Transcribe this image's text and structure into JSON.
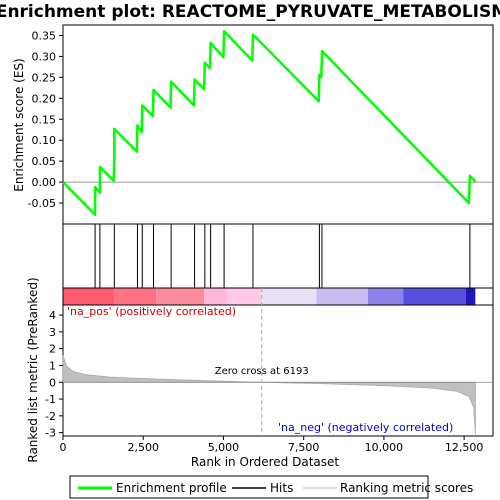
{
  "title": "Enrichment plot: REACTOME_PYRUVATE_METABOLISM",
  "chart_data": {
    "type": "line",
    "title": "Enrichment plot: REACTOME_PYRUVATE_METABOLISM",
    "xlabel": "Rank in Ordered Dataset",
    "x_range": [
      0,
      13400
    ],
    "x_ticks": [
      "0",
      "2,500",
      "5,000",
      "7,500",
      "10,000",
      "12,500"
    ],
    "x_tick_values": [
      0,
      2500,
      5000,
      7500,
      10000,
      12500
    ],
    "enrichment_panel": {
      "ylabel": "Enrichment score (ES)",
      "ylim": [
        -0.1,
        0.375
      ],
      "y_ticks": [
        "-0.05",
        "0.00",
        "0.05",
        "0.10",
        "0.15",
        "0.20",
        "0.25",
        "0.30",
        "0.35"
      ],
      "y_tick_values": [
        -0.05,
        0.0,
        0.05,
        0.1,
        0.15,
        0.2,
        0.25,
        0.3,
        0.35
      ],
      "series_name": "Enrichment profile",
      "color": "#00ff00",
      "points": [
        [
          0,
          0.0
        ],
        [
          1000,
          -0.078
        ],
        [
          1000,
          -0.012
        ],
        [
          1150,
          -0.025
        ],
        [
          1150,
          0.036
        ],
        [
          1580,
          0.003
        ],
        [
          1600,
          0.066
        ],
        [
          1600,
          0.127
        ],
        [
          2300,
          0.073
        ],
        [
          2320,
          0.135
        ],
        [
          2450,
          0.119
        ],
        [
          2470,
          0.183
        ],
        [
          2800,
          0.157
        ],
        [
          2820,
          0.22
        ],
        [
          3350,
          0.178
        ],
        [
          3370,
          0.24
        ],
        [
          4080,
          0.183
        ],
        [
          4100,
          0.245
        ],
        [
          4400,
          0.222
        ],
        [
          4420,
          0.285
        ],
        [
          4580,
          0.272
        ],
        [
          4600,
          0.332
        ],
        [
          5000,
          0.298
        ],
        [
          5020,
          0.36
        ],
        [
          5900,
          0.29
        ],
        [
          5920,
          0.352
        ],
        [
          7970,
          0.193
        ],
        [
          7990,
          0.256
        ],
        [
          8050,
          0.251
        ],
        [
          8070,
          0.313
        ],
        [
          12650,
          -0.05
        ],
        [
          12680,
          0.015
        ],
        [
          12850,
          0.001
        ]
      ]
    },
    "hits": [
      1000,
      1150,
      1600,
      2320,
      2470,
      2820,
      3370,
      4100,
      4420,
      4600,
      5020,
      5920,
      7990,
      8070,
      12680
    ],
    "metric_panel": {
      "ylabel": "Ranked list metric (PreRanked)",
      "ylim": [
        -3.2,
        4.6
      ],
      "y_ticks": [
        "-3",
        "-2",
        "-1",
        "0",
        "1",
        "2",
        "3",
        "4"
      ],
      "y_tick_values": [
        -3,
        -2,
        -1,
        0,
        1,
        2,
        3,
        4
      ],
      "curve": [
        [
          0,
          1.6
        ],
        [
          100,
          1.0
        ],
        [
          300,
          0.65
        ],
        [
          700,
          0.45
        ],
        [
          1500,
          0.3
        ],
        [
          3000,
          0.18
        ],
        [
          4500,
          0.1
        ],
        [
          6193,
          0.0
        ],
        [
          8000,
          -0.08
        ],
        [
          10000,
          -0.2
        ],
        [
          11500,
          -0.35
        ],
        [
          12300,
          -0.55
        ],
        [
          12650,
          -0.85
        ],
        [
          12800,
          -1.5
        ],
        [
          12850,
          -3.1
        ]
      ],
      "zero_cross_rank": 6193,
      "zero_cross_label": "Zero cross at 6193",
      "pos_label": "'na_pos' (positively correlated)",
      "neg_label": "'na_neg' (negatively correlated)",
      "pos_label_color": "#cc0000",
      "neg_label_color": "#0000cc"
    },
    "heatmap_bar": {
      "segments": [
        {
          "start": 0,
          "end": 1600,
          "color": "#ff5a6e"
        },
        {
          "start": 1600,
          "end": 2900,
          "color": "#ff7183"
        },
        {
          "start": 2900,
          "end": 4400,
          "color": "#ff8c9c"
        },
        {
          "start": 4400,
          "end": 5100,
          "color": "#ffb6d8"
        },
        {
          "start": 5100,
          "end": 6193,
          "color": "#ffc8e8"
        },
        {
          "start": 6193,
          "end": 7900,
          "color": "#e8e0f6"
        },
        {
          "start": 7900,
          "end": 9500,
          "color": "#c8bcf0"
        },
        {
          "start": 9500,
          "end": 10600,
          "color": "#8c82ea"
        },
        {
          "start": 10600,
          "end": 12550,
          "color": "#5a4ee0"
        },
        {
          "start": 12550,
          "end": 12850,
          "color": "#2218b8"
        }
      ]
    },
    "legend": {
      "placement": "bottom",
      "items": [
        "Enrichment profile",
        "Hits",
        "Ranking metric scores"
      ]
    }
  }
}
